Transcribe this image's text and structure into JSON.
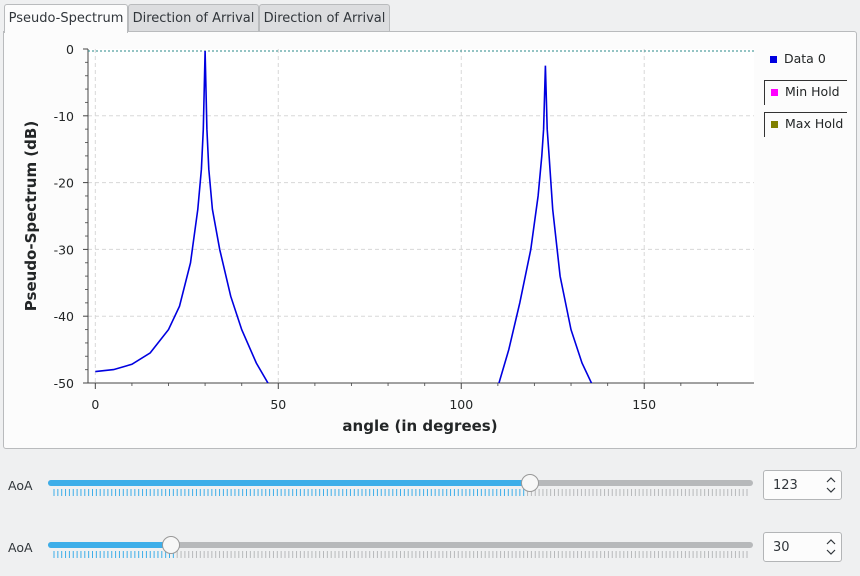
{
  "tabs": [
    {
      "label": "Pseudo-Spectrum",
      "active": true
    },
    {
      "label": "Direction of Arrival",
      "active": false
    },
    {
      "label": "Direction of Arrival",
      "active": false
    }
  ],
  "legend": [
    {
      "label": "Data 0",
      "color": "#0000e0"
    },
    {
      "label": "Min Hold",
      "color": "#ff00ff"
    },
    {
      "label": "Max Hold",
      "color": "#808000"
    }
  ],
  "chart_data": {
    "type": "line",
    "xlabel": "angle (in degrees)",
    "ylabel": "Pseudo-Spectrum (dB)",
    "xlim": [
      -2,
      180
    ],
    "ylim": [
      -50,
      0
    ],
    "xticks": [
      0,
      50,
      100,
      150
    ],
    "yticks": [
      0,
      -10,
      -20,
      -30,
      -40,
      -50
    ],
    "grid": true,
    "series": [
      {
        "name": "Data 0",
        "peaks_deg": [
          30,
          123
        ],
        "x": [
          0,
          5,
          10,
          15,
          20,
          23,
          26,
          28,
          29,
          29.5,
          30,
          30.5,
          31,
          32,
          34,
          37,
          40,
          44,
          48,
          110,
          113,
          116,
          119,
          121,
          122,
          122.5,
          123,
          123.5,
          124,
          125,
          127,
          130,
          133,
          136
        ],
        "y": [
          -48.3,
          -48,
          -47.2,
          -45.5,
          -42,
          -38.5,
          -32,
          -24,
          -18,
          -12,
          -0.3,
          -12,
          -18,
          -24,
          -30,
          -37,
          -42,
          -47,
          -50.8,
          -50.6,
          -45,
          -38,
          -30,
          -22,
          -16,
          -12,
          -2.5,
          -12,
          -16,
          -24,
          -34,
          -42,
          -47,
          -50.5
        ]
      }
    ]
  },
  "controls": [
    {
      "label": "AoA",
      "value": "123",
      "fraction": 0.683,
      "max": 180
    },
    {
      "label": "AoA",
      "value": "30",
      "fraction": 0.175,
      "max": 180
    }
  ]
}
